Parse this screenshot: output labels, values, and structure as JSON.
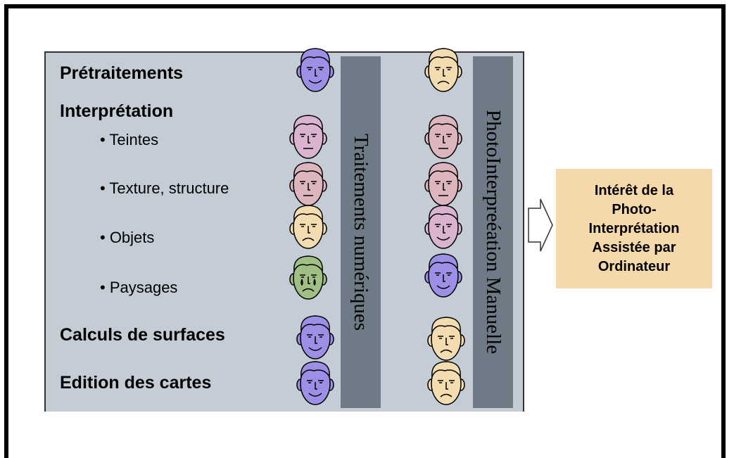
{
  "rows": [
    "Prétraitements",
    "Interprétation",
    "• Teintes",
    "• Texture, structure",
    "• Objets",
    "• Paysages",
    "Calculs de surfaces",
    "Edition des cartes"
  ],
  "columns": [
    "Traitements numériques",
    "PhotoInterpreéation Manuelle"
  ],
  "result": {
    "lines": [
      "Intérêt de la",
      "Photo-",
      "Interprétation",
      "Assistée par",
      "Ordinateur"
    ]
  }
}
